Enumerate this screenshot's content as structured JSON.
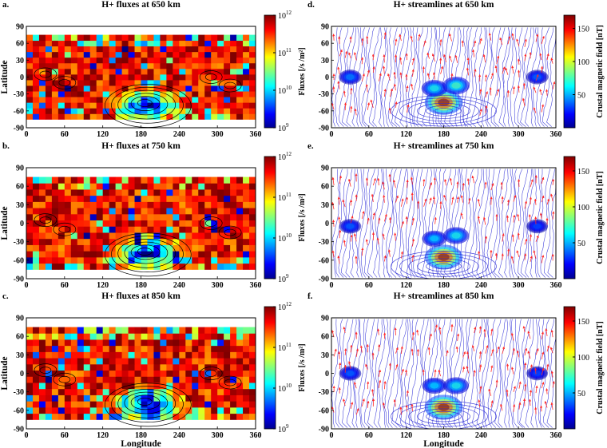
{
  "figure": {
    "xlabel": "Longitude",
    "ylabel": "Latitude",
    "colors": {
      "streamline": "#2a2ad6",
      "arrow": "#ff2a2a",
      "contour": "#000000",
      "jet": [
        "#00008f",
        "#0000ff",
        "#00a0ff",
        "#00ffff",
        "#80ff80",
        "#ffff00",
        "#ff8000",
        "#ff0000",
        "#800000"
      ]
    }
  },
  "chart_data": [
    {
      "id": "a",
      "type": "heatmap",
      "panel_label": "a.",
      "title": "H+ fluxes at 650 km",
      "ylabel": "Latitude",
      "xlabel": "",
      "xlim": [
        0,
        360
      ],
      "ylim": [
        -90,
        90
      ],
      "xticks": [
        "0",
        "60",
        "120",
        "180",
        "240",
        "300",
        "360"
      ],
      "yticks": [
        "90",
        "60",
        "30",
        "0",
        "-30",
        "-60",
        "-90"
      ],
      "grid": {
        "lon_bins": 36,
        "lat_bins": 15,
        "lat_range": [
          -75,
          75
        ]
      },
      "colorbar": {
        "label": "Fluxes  [/s /m²]",
        "scale": "log",
        "tick_base": "10",
        "tick_exps": [
          "12",
          "11",
          "10",
          "9"
        ],
        "range": [
          1000000000.0,
          1000000000000.0
        ]
      },
      "pattern": "mostly red/orange 10^11–10^12 fluxes; blue low-flux region south of equator near 150–240° E (strong crustal field); scattered blue/cyan cells elsewhere"
    },
    {
      "id": "b",
      "type": "heatmap",
      "panel_label": "b.",
      "title": "H+ fluxes at 750 km",
      "ylabel": "Latitude",
      "xlabel": "",
      "xlim": [
        0,
        360
      ],
      "ylim": [
        -90,
        90
      ],
      "xticks": [
        "0",
        "60",
        "120",
        "180",
        "240",
        "300",
        "360"
      ],
      "yticks": [
        "90",
        "60",
        "30",
        "0",
        "-30",
        "-60",
        "-90"
      ],
      "grid": {
        "lon_bins": 36,
        "lat_bins": 15,
        "lat_range": [
          -75,
          75
        ]
      },
      "colorbar": {
        "label": "Fluxes  [/s /m²]",
        "scale": "log",
        "tick_base": "10",
        "tick_exps": [
          "12",
          "11",
          "10",
          "9"
        ],
        "range": [
          1000000000.0,
          1000000000000.0
        ]
      }
    },
    {
      "id": "c",
      "type": "heatmap",
      "panel_label": "c.",
      "title": "H+ fluxes at 850 km",
      "ylabel": "Latitude",
      "xlabel": "Longitude",
      "xlim": [
        0,
        360
      ],
      "ylim": [
        -90,
        90
      ],
      "xticks": [
        "0",
        "60",
        "120",
        "180",
        "240",
        "300",
        "360"
      ],
      "yticks": [
        "90",
        "60",
        "30",
        "0",
        "-30",
        "-60",
        "-90"
      ],
      "grid": {
        "lon_bins": 36,
        "lat_bins": 15,
        "lat_range": [
          -75,
          75
        ]
      },
      "colorbar": {
        "label": "Fluxes  [/s /m²]",
        "scale": "log",
        "tick_base": "10",
        "tick_exps": [
          "12",
          "11",
          "10",
          "9"
        ],
        "range": [
          1000000000.0,
          1000000000000.0
        ]
      }
    },
    {
      "id": "d",
      "type": "streamlines",
      "panel_label": "d.",
      "title": "H+ streamlines at 650 km",
      "xlabel": "",
      "xlim": [
        0,
        360
      ],
      "ylim": [
        -90,
        90
      ],
      "xticks": [
        "0",
        "60",
        "120",
        "180",
        "240",
        "300",
        "360"
      ],
      "yticks": [
        "90",
        "60",
        "30",
        "0",
        "-30",
        "-60",
        "-90"
      ],
      "colorbar": {
        "label": "Crustal magnetic field  [nT]",
        "ticks": [
          "150",
          "100",
          "50"
        ],
        "range": [
          0,
          170
        ]
      },
      "field_sources": [
        {
          "lon": 180,
          "lat": -45,
          "strength": 170
        },
        {
          "lon": 165,
          "lat": -20,
          "strength": 70
        },
        {
          "lon": 200,
          "lat": -15,
          "strength": 80
        },
        {
          "lon": 30,
          "lat": 0,
          "strength": 45
        },
        {
          "lon": 330,
          "lat": 0,
          "strength": 40
        }
      ]
    },
    {
      "id": "e",
      "type": "streamlines",
      "panel_label": "e.",
      "title": "H+ streamlines at 750 km",
      "xlabel": "",
      "xlim": [
        0,
        360
      ],
      "ylim": [
        -90,
        90
      ],
      "xticks": [
        "0",
        "60",
        "120",
        "180",
        "240",
        "300",
        "360"
      ],
      "yticks": [
        "90",
        "60",
        "30",
        "0",
        "-30",
        "-60",
        "-90"
      ],
      "colorbar": {
        "label": "Crustal magnetic field  [nT]",
        "ticks": [
          "150",
          "100",
          "50"
        ],
        "range": [
          0,
          170
        ]
      },
      "field_sources": [
        {
          "lon": 180,
          "lat": -55,
          "strength": 170
        },
        {
          "lon": 165,
          "lat": -25,
          "strength": 60
        },
        {
          "lon": 200,
          "lat": -20,
          "strength": 70
        },
        {
          "lon": 30,
          "lat": -5,
          "strength": 40
        },
        {
          "lon": 330,
          "lat": -5,
          "strength": 35
        }
      ]
    },
    {
      "id": "f",
      "type": "streamlines",
      "panel_label": "f.",
      "title": "H+ streamlines at 850 km",
      "xlabel": "Longitude",
      "xlim": [
        0,
        360
      ],
      "ylim": [
        -90,
        90
      ],
      "xticks": [
        "0",
        "60",
        "120",
        "180",
        "240",
        "300",
        "360"
      ],
      "yticks": [
        "90",
        "60",
        "30",
        "0",
        "-30",
        "-60",
        "-90"
      ],
      "colorbar": {
        "label": "Crustal magnetic field  [nT]",
        "ticks": [
          "150",
          "100",
          "50"
        ],
        "range": [
          0,
          170
        ]
      },
      "field_sources": [
        {
          "lon": 180,
          "lat": -55,
          "strength": 170
        },
        {
          "lon": 165,
          "lat": -20,
          "strength": 60
        },
        {
          "lon": 200,
          "lat": -20,
          "strength": 70
        },
        {
          "lon": 30,
          "lat": 0,
          "strength": 40
        },
        {
          "lon": 330,
          "lat": 0,
          "strength": 35
        }
      ]
    }
  ]
}
